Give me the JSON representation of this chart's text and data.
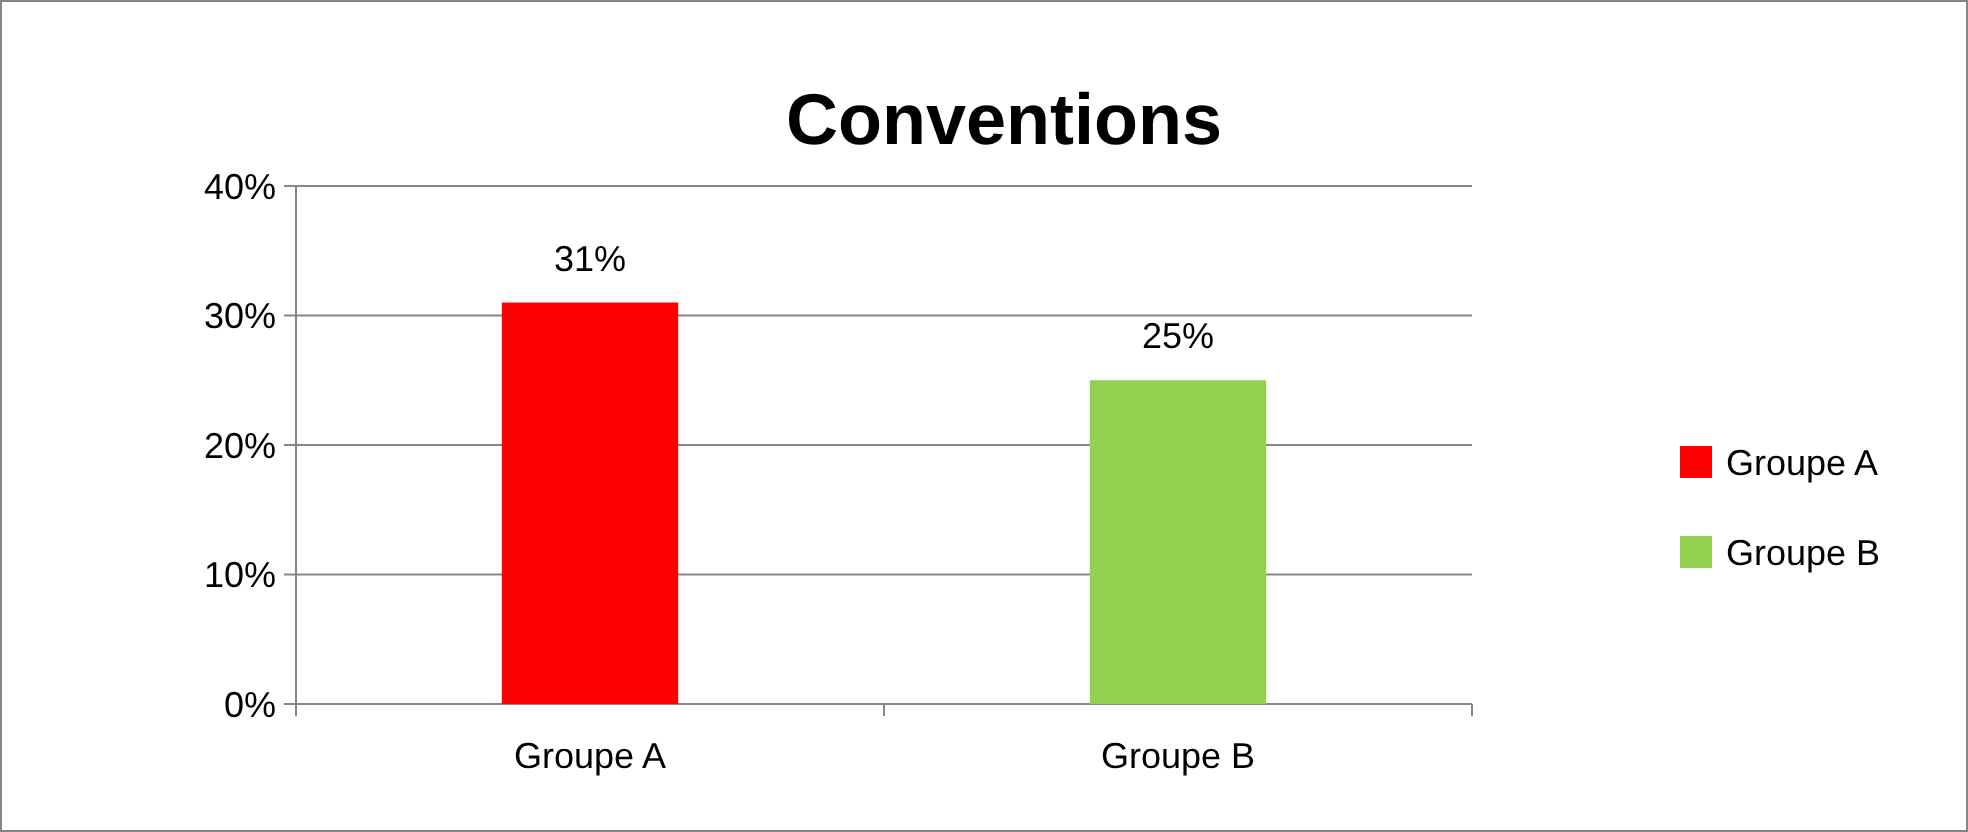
{
  "chart_data": {
    "type": "bar",
    "title": "Conventions",
    "categories": [
      "Groupe A",
      "Groupe B"
    ],
    "series": [
      {
        "name": "Groupe A",
        "color": "#ff0000",
        "values": [
          31,
          null
        ],
        "value_labels": [
          "31%",
          null
        ]
      },
      {
        "name": "Groupe B",
        "color": "#92d050",
        "values": [
          null,
          25
        ],
        "value_labels": [
          null,
          "25%"
        ]
      }
    ],
    "ylim": [
      0,
      40
    ],
    "yticks": [
      {
        "value": 0,
        "label": "0%"
      },
      {
        "value": 10,
        "label": "10%"
      },
      {
        "value": 20,
        "label": "20%"
      },
      {
        "value": 30,
        "label": "30%"
      },
      {
        "value": 40,
        "label": "40%"
      }
    ],
    "grid": "y",
    "legend": "right"
  }
}
